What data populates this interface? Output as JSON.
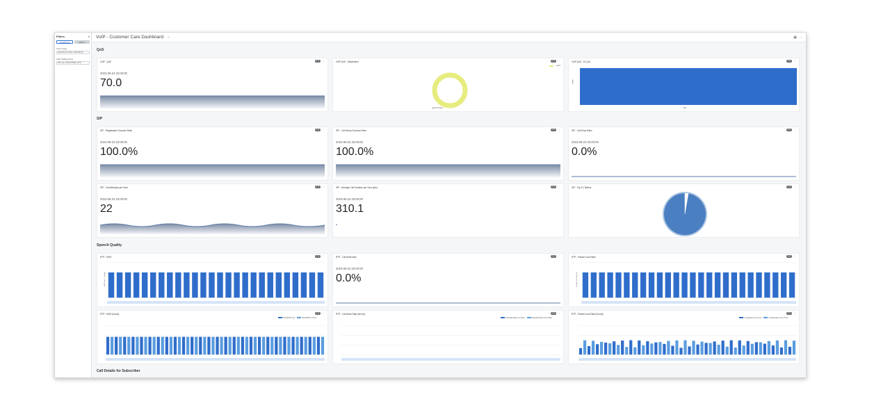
{
  "sidebar": {
    "title": "Filters",
    "collapse_icon": "double-chevron-left-icon",
    "clear_label": "CLEAR ALL",
    "apply_label": "APPLY",
    "time_range_label": "Time range",
    "time_range_value": "2023-06-23 14:00 ≤ 2023-06-23 ...",
    "voip_label": "VoIP Calling Party",
    "voip_value": "SIP:+sip:+4917021956_01*8..."
  },
  "header": {
    "title": "VoIP - Customer Care Dashboard",
    "star_icon": "star-icon",
    "calendar_icon": "calendar-icon",
    "more_icon": "more-icon"
  },
  "sections": {
    "qos": "QoS",
    "sip": "SIP",
    "speech": "Speech Quality",
    "calls": "Call Details for Subscriber"
  },
  "panels": {
    "qos_score": {
      "title": "VoIP - QoS",
      "tag": "1 ⊕",
      "date": "2023-06-23 23:00:00",
      "value": "70.0"
    },
    "qos_dist": {
      "title": "VoIP QoS - Distribution",
      "tag": "1 ⊕",
      "legend": "good",
      "label": "good (70.0%)"
    },
    "qos_hist": {
      "title": "VoIP QoS - 10 (10)",
      "tag": "1 ⊕",
      "ylabel": "Score",
      "xlabel": "Bar"
    },
    "reg_ratio": {
      "title": "SIP - Registration Success Ratio",
      "tag": "1 ⊕",
      "date": "2023-06-23 23:00:00",
      "value": "100.0%"
    },
    "setup_ratio": {
      "title": "SIP - Call Setup Success Ratio",
      "tag": "1 ⊕",
      "date": "2023-06-23 23:00:00",
      "value": "100.0%"
    },
    "drop_ratio": {
      "title": "SIP - Call Drop Ratio",
      "tag": "1 ⊕",
      "date": "2023-06-23 23:00:00",
      "value": "0.0%"
    },
    "attempts": {
      "title": "SIP - Call Attempts per Hour",
      "tag": "1 ⊕",
      "date": "2023-06-23 23:00:00",
      "value": "22"
    },
    "avg_duration": {
      "title": "SIP - Average Call Duration per Hour [sec]",
      "tag": "1 ⊕",
      "date": "2023-06-23 23:00:00",
      "value": "310.1"
    },
    "talkers": {
      "title": "SIP - Top 10 Talkers",
      "tag": "1 ⊕"
    },
    "mos": {
      "title": "RTP - MOS",
      "tag": "1 ⊕",
      "ylabel": "MOS (-Ipm - 1 (avg))"
    },
    "mute": {
      "title": "RTP - Call Mute ratio",
      "tag": "1 ⊕",
      "date": "2023-06-23 23:00:00",
      "value": "0.0%"
    },
    "loss": {
      "title": "RTP - Packet Loss Ratio",
      "tag": "1 ⊕",
      "ylabel": "Packet Loss Ratio (%)"
    },
    "mos_in_out": {
      "title": "RTP - MOS [In/out]",
      "tag": "1 ⊕",
      "legend_in": "MOS(RTP) (In)",
      "legend_out": "MOS(RTP) (OUT)"
    },
    "mute_in_out": {
      "title": "RTP - Call Mute Ratio [In/out]",
      "tag": "1 ⊕",
      "legend_in": "Mute(all) Ratio (In Side)",
      "legend_out": "Mute(all) Ratio (Out Side)"
    },
    "loss_in_out": {
      "title": "RTP - Packet Loss Ratio [In/out]",
      "tag": "1 ⊕",
      "legend_in": "Loss(packet) Loss (In)",
      "legend_out": "Loss(packet) Loss (Out)"
    }
  },
  "colors": {
    "accent": "#2d6fcf",
    "donut": "#e7ec7f",
    "pie": "#4a7fc1",
    "light_bar": "#5a9de0"
  }
}
